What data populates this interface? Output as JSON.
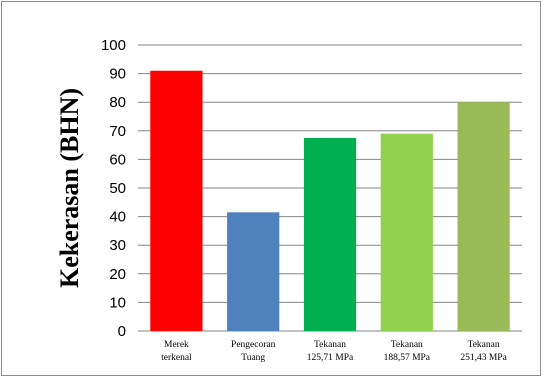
{
  "chart_data": {
    "type": "bar",
    "categories": [
      [
        "Merek",
        "terkenal"
      ],
      [
        "Pengecoran",
        "Tuang"
      ],
      [
        "Tekanan",
        "125,71 MPa"
      ],
      [
        "Tekanan",
        "188,57 MPa"
      ],
      [
        "Tekanan",
        "251,43 MPa"
      ]
    ],
    "values": [
      91,
      41.5,
      67.5,
      69,
      80
    ],
    "bar_colors": [
      "#ff0000",
      "#4f81bd",
      "#00b050",
      "#92d050",
      "#9bbb59"
    ],
    "ylabel": "Kekerasan (BHN)",
    "xlabel": "",
    "ylim": [
      0,
      100
    ],
    "yticks": [
      0,
      10,
      20,
      30,
      40,
      50,
      60,
      70,
      80,
      90,
      100
    ],
    "grid": true,
    "gridline_color": "#868686"
  }
}
